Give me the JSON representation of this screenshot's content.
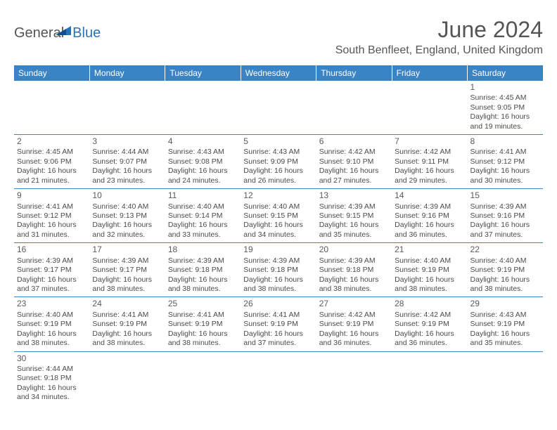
{
  "logo": {
    "part1": "General",
    "part2": "Blue"
  },
  "title": "June 2024",
  "location": "South Benfleet, England, United Kingdom",
  "colors": {
    "header_bg": "#3a83c5",
    "header_text": "#ffffff",
    "border": "#3a83c5",
    "body_text": "#4a4a4a",
    "title_text": "#555555",
    "logo_blue": "#2873b8"
  },
  "day_headers": [
    "Sunday",
    "Monday",
    "Tuesday",
    "Wednesday",
    "Thursday",
    "Friday",
    "Saturday"
  ],
  "weeks": [
    [
      null,
      null,
      null,
      null,
      null,
      null,
      {
        "n": "1",
        "sr": "Sunrise: 4:45 AM",
        "ss": "Sunset: 9:05 PM",
        "dl1": "Daylight: 16 hours",
        "dl2": "and 19 minutes."
      }
    ],
    [
      {
        "n": "2",
        "sr": "Sunrise: 4:45 AM",
        "ss": "Sunset: 9:06 PM",
        "dl1": "Daylight: 16 hours",
        "dl2": "and 21 minutes."
      },
      {
        "n": "3",
        "sr": "Sunrise: 4:44 AM",
        "ss": "Sunset: 9:07 PM",
        "dl1": "Daylight: 16 hours",
        "dl2": "and 23 minutes."
      },
      {
        "n": "4",
        "sr": "Sunrise: 4:43 AM",
        "ss": "Sunset: 9:08 PM",
        "dl1": "Daylight: 16 hours",
        "dl2": "and 24 minutes."
      },
      {
        "n": "5",
        "sr": "Sunrise: 4:43 AM",
        "ss": "Sunset: 9:09 PM",
        "dl1": "Daylight: 16 hours",
        "dl2": "and 26 minutes."
      },
      {
        "n": "6",
        "sr": "Sunrise: 4:42 AM",
        "ss": "Sunset: 9:10 PM",
        "dl1": "Daylight: 16 hours",
        "dl2": "and 27 minutes."
      },
      {
        "n": "7",
        "sr": "Sunrise: 4:42 AM",
        "ss": "Sunset: 9:11 PM",
        "dl1": "Daylight: 16 hours",
        "dl2": "and 29 minutes."
      },
      {
        "n": "8",
        "sr": "Sunrise: 4:41 AM",
        "ss": "Sunset: 9:12 PM",
        "dl1": "Daylight: 16 hours",
        "dl2": "and 30 minutes."
      }
    ],
    [
      {
        "n": "9",
        "sr": "Sunrise: 4:41 AM",
        "ss": "Sunset: 9:12 PM",
        "dl1": "Daylight: 16 hours",
        "dl2": "and 31 minutes."
      },
      {
        "n": "10",
        "sr": "Sunrise: 4:40 AM",
        "ss": "Sunset: 9:13 PM",
        "dl1": "Daylight: 16 hours",
        "dl2": "and 32 minutes."
      },
      {
        "n": "11",
        "sr": "Sunrise: 4:40 AM",
        "ss": "Sunset: 9:14 PM",
        "dl1": "Daylight: 16 hours",
        "dl2": "and 33 minutes."
      },
      {
        "n": "12",
        "sr": "Sunrise: 4:40 AM",
        "ss": "Sunset: 9:15 PM",
        "dl1": "Daylight: 16 hours",
        "dl2": "and 34 minutes."
      },
      {
        "n": "13",
        "sr": "Sunrise: 4:39 AM",
        "ss": "Sunset: 9:15 PM",
        "dl1": "Daylight: 16 hours",
        "dl2": "and 35 minutes."
      },
      {
        "n": "14",
        "sr": "Sunrise: 4:39 AM",
        "ss": "Sunset: 9:16 PM",
        "dl1": "Daylight: 16 hours",
        "dl2": "and 36 minutes."
      },
      {
        "n": "15",
        "sr": "Sunrise: 4:39 AM",
        "ss": "Sunset: 9:16 PM",
        "dl1": "Daylight: 16 hours",
        "dl2": "and 37 minutes."
      }
    ],
    [
      {
        "n": "16",
        "sr": "Sunrise: 4:39 AM",
        "ss": "Sunset: 9:17 PM",
        "dl1": "Daylight: 16 hours",
        "dl2": "and 37 minutes."
      },
      {
        "n": "17",
        "sr": "Sunrise: 4:39 AM",
        "ss": "Sunset: 9:17 PM",
        "dl1": "Daylight: 16 hours",
        "dl2": "and 38 minutes."
      },
      {
        "n": "18",
        "sr": "Sunrise: 4:39 AM",
        "ss": "Sunset: 9:18 PM",
        "dl1": "Daylight: 16 hours",
        "dl2": "and 38 minutes."
      },
      {
        "n": "19",
        "sr": "Sunrise: 4:39 AM",
        "ss": "Sunset: 9:18 PM",
        "dl1": "Daylight: 16 hours",
        "dl2": "and 38 minutes."
      },
      {
        "n": "20",
        "sr": "Sunrise: 4:39 AM",
        "ss": "Sunset: 9:18 PM",
        "dl1": "Daylight: 16 hours",
        "dl2": "and 38 minutes."
      },
      {
        "n": "21",
        "sr": "Sunrise: 4:40 AM",
        "ss": "Sunset: 9:19 PM",
        "dl1": "Daylight: 16 hours",
        "dl2": "and 38 minutes."
      },
      {
        "n": "22",
        "sr": "Sunrise: 4:40 AM",
        "ss": "Sunset: 9:19 PM",
        "dl1": "Daylight: 16 hours",
        "dl2": "and 38 minutes."
      }
    ],
    [
      {
        "n": "23",
        "sr": "Sunrise: 4:40 AM",
        "ss": "Sunset: 9:19 PM",
        "dl1": "Daylight: 16 hours",
        "dl2": "and 38 minutes."
      },
      {
        "n": "24",
        "sr": "Sunrise: 4:41 AM",
        "ss": "Sunset: 9:19 PM",
        "dl1": "Daylight: 16 hours",
        "dl2": "and 38 minutes."
      },
      {
        "n": "25",
        "sr": "Sunrise: 4:41 AM",
        "ss": "Sunset: 9:19 PM",
        "dl1": "Daylight: 16 hours",
        "dl2": "and 38 minutes."
      },
      {
        "n": "26",
        "sr": "Sunrise: 4:41 AM",
        "ss": "Sunset: 9:19 PM",
        "dl1": "Daylight: 16 hours",
        "dl2": "and 37 minutes."
      },
      {
        "n": "27",
        "sr": "Sunrise: 4:42 AM",
        "ss": "Sunset: 9:19 PM",
        "dl1": "Daylight: 16 hours",
        "dl2": "and 36 minutes."
      },
      {
        "n": "28",
        "sr": "Sunrise: 4:42 AM",
        "ss": "Sunset: 9:19 PM",
        "dl1": "Daylight: 16 hours",
        "dl2": "and 36 minutes."
      },
      {
        "n": "29",
        "sr": "Sunrise: 4:43 AM",
        "ss": "Sunset: 9:19 PM",
        "dl1": "Daylight: 16 hours",
        "dl2": "and 35 minutes."
      }
    ],
    [
      {
        "n": "30",
        "sr": "Sunrise: 4:44 AM",
        "ss": "Sunset: 9:18 PM",
        "dl1": "Daylight: 16 hours",
        "dl2": "and 34 minutes."
      },
      null,
      null,
      null,
      null,
      null,
      null
    ]
  ]
}
